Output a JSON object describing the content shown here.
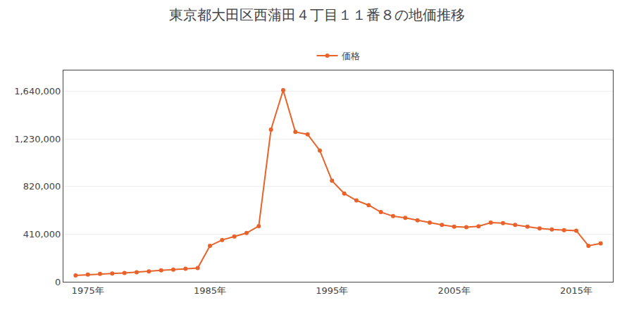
{
  "chart_data": {
    "type": "line",
    "title": "東京都大田区西蒲田４丁目１１番８の地価推移",
    "x": [
      1974,
      1975,
      1976,
      1977,
      1978,
      1979,
      1980,
      1981,
      1982,
      1983,
      1984,
      1985,
      1986,
      1987,
      1988,
      1989,
      1990,
      1991,
      1992,
      1993,
      1994,
      1995,
      1996,
      1997,
      1998,
      1999,
      2000,
      2001,
      2002,
      2003,
      2004,
      2005,
      2006,
      2007,
      2008,
      2009,
      2010,
      2011,
      2012,
      2013,
      2014,
      2015,
      2016,
      2017
    ],
    "series": [
      {
        "name": "価格",
        "color": "#e8622a",
        "marker": "circle",
        "values": [
          55000,
          62000,
          68000,
          72000,
          76000,
          82000,
          90000,
          98000,
          105000,
          112000,
          118000,
          310000,
          360000,
          390000,
          420000,
          480000,
          1310000,
          1650000,
          1290000,
          1270000,
          1130000,
          870000,
          760000,
          700000,
          660000,
          600000,
          565000,
          550000,
          530000,
          510000,
          490000,
          475000,
          470000,
          478000,
          510000,
          505000,
          490000,
          475000,
          460000,
          450000,
          445000,
          440000,
          310000,
          330000
        ]
      }
    ],
    "xlim": [
      1973,
      2018
    ],
    "xticks": [
      {
        "value": 1975,
        "label": "1975年"
      },
      {
        "value": 1985,
        "label": "1985年"
      },
      {
        "value": 1995,
        "label": "1995年"
      },
      {
        "value": 2005,
        "label": "2005年"
      },
      {
        "value": 2015,
        "label": "2015年"
      }
    ],
    "ylim": [
      0,
      1820000
    ],
    "yticks": [
      0,
      {
        "value": 410000,
        "label": "410,000"
      },
      {
        "value": 820000,
        "label": "820,000"
      },
      {
        "value": 1230000,
        "label": "1,230,000"
      },
      {
        "value": 1640000,
        "label": "1,640,000"
      }
    ],
    "grid": "y",
    "legend": "top"
  }
}
